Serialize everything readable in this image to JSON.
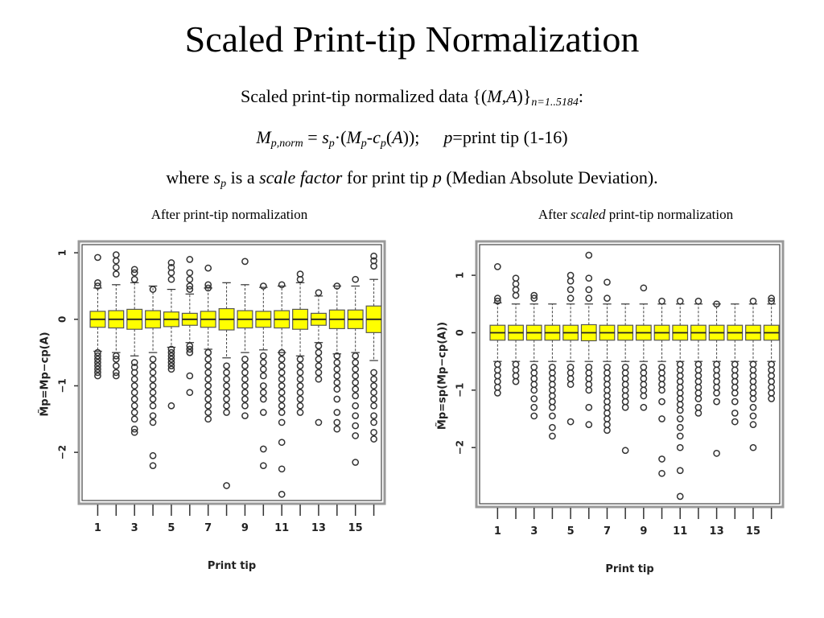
{
  "slide": {
    "title": "Scaled Print-tip Normalization",
    "line1": {
      "text": "Scaled print-tip normalized data {(",
      "var_m": "M",
      "comma": ",",
      "var_a": "A",
      "close": ")}",
      "subscript": "n=1..5184",
      "end": ":"
    },
    "line2": {
      "m": "M",
      "m_sub": "p,norm",
      "eq": " = ",
      "s": "s",
      "s_sub": "p",
      "dot_open": "·(",
      "m2": "M",
      "m2_sub": "p",
      "minus": "-",
      "c": "c",
      "c_sub": "p",
      "open": "(",
      "a": "A",
      "close": "));",
      "p": "p",
      "p_text": "=print tip (1-16)"
    },
    "line3": {
      "where": "where ",
      "s": "s",
      "s_sub": "p",
      "is_a": " is a ",
      "scale_factor": "scale factor",
      "for_tip": " for print tip ",
      "p": "p",
      "rest": " (Median Absolute Deviation)."
    },
    "captions": {
      "left": "After print-tip normalization",
      "right_prefix": "After ",
      "right_italic": "scaled",
      "right_suffix": " print-tip normalization"
    }
  },
  "colors": {
    "box_fill": "#ffff00",
    "box_stroke": "#555555",
    "outlier": "#333333"
  },
  "chart_data": [
    {
      "type": "boxplot",
      "xlabel": "Print tip",
      "ylabel": "M̃p=Mp−cp(A)",
      "ylim": [
        -2.7,
        1.05
      ],
      "yticks": [
        -2,
        -1,
        0,
        1
      ],
      "xtick_labels": [
        "1",
        "3",
        "5",
        "7",
        "9",
        "11",
        "13",
        "15"
      ],
      "categories": [
        1,
        2,
        3,
        4,
        5,
        6,
        7,
        8,
        9,
        10,
        11,
        12,
        13,
        14,
        15,
        16
      ],
      "boxes": [
        {
          "tip": 1,
          "q1": -0.12,
          "median": 0,
          "q3": 0.12,
          "wmin": -0.48,
          "wmax": 0.47
        },
        {
          "tip": 2,
          "q1": -0.13,
          "median": 0,
          "q3": 0.13,
          "wmin": -0.5,
          "wmax": 0.52
        },
        {
          "tip": 3,
          "q1": -0.15,
          "median": 0,
          "q3": 0.15,
          "wmin": -0.55,
          "wmax": 0.55
        },
        {
          "tip": 4,
          "q1": -0.13,
          "median": 0,
          "q3": 0.13,
          "wmin": -0.5,
          "wmax": 0.5
        },
        {
          "tip": 5,
          "q1": -0.11,
          "median": 0,
          "q3": 0.11,
          "wmin": -0.42,
          "wmax": 0.45
        },
        {
          "tip": 6,
          "q1": -0.09,
          "median": 0,
          "q3": 0.09,
          "wmin": -0.35,
          "wmax": 0.38
        },
        {
          "tip": 7,
          "q1": -0.12,
          "median": 0,
          "q3": 0.12,
          "wmin": -0.45,
          "wmax": 0.47
        },
        {
          "tip": 8,
          "q1": -0.16,
          "median": 0,
          "q3": 0.16,
          "wmin": -0.58,
          "wmax": 0.55
        },
        {
          "tip": 9,
          "q1": -0.13,
          "median": 0,
          "q3": 0.13,
          "wmin": -0.5,
          "wmax": 0.52
        },
        {
          "tip": 10,
          "q1": -0.12,
          "median": 0,
          "q3": 0.12,
          "wmin": -0.46,
          "wmax": 0.48
        },
        {
          "tip": 11,
          "q1": -0.13,
          "median": 0,
          "q3": 0.13,
          "wmin": -0.5,
          "wmax": 0.5
        },
        {
          "tip": 12,
          "q1": -0.15,
          "median": 0,
          "q3": 0.15,
          "wmin": -0.55,
          "wmax": 0.55
        },
        {
          "tip": 13,
          "q1": -0.09,
          "median": 0,
          "q3": 0.09,
          "wmin": -0.35,
          "wmax": 0.35
        },
        {
          "tip": 14,
          "q1": -0.14,
          "median": 0,
          "q3": 0.14,
          "wmin": -0.52,
          "wmax": 0.5
        },
        {
          "tip": 15,
          "q1": -0.14,
          "median": 0,
          "q3": 0.14,
          "wmin": -0.5,
          "wmax": 0.5
        },
        {
          "tip": 16,
          "q1": -0.2,
          "median": 0,
          "q3": 0.2,
          "wmin": -0.62,
          "wmax": 0.6
        }
      ],
      "outliers": [
        [
          0.93,
          0.55,
          0.5,
          -0.5,
          -0.55,
          -0.6,
          -0.65,
          -0.7,
          -0.75,
          -0.8,
          -0.85
        ],
        [
          0.97,
          0.88,
          0.78,
          0.68,
          -0.55,
          -0.6,
          -0.7,
          -0.8,
          -0.85
        ],
        [
          0.75,
          0.7,
          0.6,
          -0.65,
          -0.72,
          -0.8,
          -0.9,
          -1.0,
          -1.1,
          -1.2,
          -1.3,
          -1.4,
          -1.5,
          -1.65,
          -1.7
        ],
        [
          0.45,
          -0.6,
          -0.7,
          -0.8,
          -0.9,
          -1.0,
          -1.1,
          -1.2,
          -1.3,
          -1.45,
          -1.55,
          -2.05,
          -2.2
        ],
        [
          0.85,
          0.78,
          0.7,
          0.6,
          -0.45,
          -0.5,
          -0.55,
          -0.6,
          -0.65,
          -0.7,
          -0.75,
          -1.3
        ],
        [
          0.9,
          0.7,
          0.6,
          0.5,
          0.45,
          -0.4,
          -0.45,
          -0.5,
          -0.85,
          -1.1
        ],
        [
          0.77,
          0.52,
          0.47,
          -0.5,
          -0.6,
          -0.7,
          -0.8,
          -0.9,
          -1.0,
          -1.1,
          -1.2,
          -1.3,
          -1.4,
          -1.5
        ],
        [
          -0.7,
          -0.8,
          -0.9,
          -1.0,
          -1.1,
          -1.2,
          -1.3,
          -1.4,
          -2.5
        ],
        [
          0.87,
          -0.6,
          -0.7,
          -0.8,
          -0.9,
          -1.0,
          -1.1,
          -1.2,
          -1.3,
          -1.45
        ],
        [
          0.5,
          -0.55,
          -0.65,
          -0.75,
          -0.85,
          -1.0,
          -1.1,
          -1.2,
          -1.4,
          -1.95,
          -2.2
        ],
        [
          0.52,
          -0.5,
          -0.6,
          -0.7,
          -0.8,
          -0.9,
          -1.0,
          -1.1,
          -1.2,
          -1.3,
          -1.4,
          -1.55,
          -1.85,
          -2.25,
          -2.63
        ],
        [
          0.68,
          0.6,
          -0.6,
          -0.7,
          -0.8,
          -0.9,
          -1.0,
          -1.1,
          -1.2,
          -1.3,
          -1.4
        ],
        [
          0.4,
          -0.4,
          -0.5,
          -0.6,
          -0.7,
          -0.8,
          -0.9,
          -1.55
        ],
        [
          0.5,
          -0.55,
          -0.65,
          -0.75,
          -0.85,
          -0.95,
          -1.05,
          -1.2,
          -1.4,
          -1.55,
          -1.65
        ],
        [
          0.6,
          -0.55,
          -0.65,
          -0.75,
          -0.85,
          -0.95,
          -1.05,
          -1.15,
          -1.3,
          -1.45,
          -1.6,
          -1.75,
          -2.15
        ],
        [
          0.95,
          0.88,
          0.8,
          -0.8,
          -0.9,
          -1.0,
          -1.1,
          -1.2,
          -1.3,
          -1.45,
          -1.55,
          -1.7,
          -1.8
        ]
      ]
    },
    {
      "type": "boxplot",
      "xlabel": "Print tip",
      "ylabel": "M̃p=sp(Mp−cp(A))",
      "ylim": [
        -2.95,
        1.45
      ],
      "yticks": [
        -2,
        -1,
        0,
        1
      ],
      "xtick_labels": [
        "1",
        "3",
        "5",
        "7",
        "9",
        "11",
        "13",
        "15"
      ],
      "categories": [
        1,
        2,
        3,
        4,
        5,
        6,
        7,
        8,
        9,
        10,
        11,
        12,
        13,
        14,
        15,
        16
      ],
      "boxes": [
        {
          "tip": 1,
          "q1": -0.13,
          "median": 0,
          "q3": 0.13,
          "wmin": -0.5,
          "wmax": 0.52
        },
        {
          "tip": 2,
          "q1": -0.13,
          "median": 0,
          "q3": 0.13,
          "wmin": -0.5,
          "wmax": 0.5
        },
        {
          "tip": 3,
          "q1": -0.13,
          "median": 0,
          "q3": 0.13,
          "wmin": -0.5,
          "wmax": 0.5
        },
        {
          "tip": 4,
          "q1": -0.13,
          "median": 0,
          "q3": 0.13,
          "wmin": -0.5,
          "wmax": 0.5
        },
        {
          "tip": 5,
          "q1": -0.13,
          "median": 0,
          "q3": 0.13,
          "wmin": -0.5,
          "wmax": 0.5
        },
        {
          "tip": 6,
          "q1": -0.14,
          "median": 0,
          "q3": 0.14,
          "wmin": -0.5,
          "wmax": 0.5
        },
        {
          "tip": 7,
          "q1": -0.13,
          "median": 0,
          "q3": 0.13,
          "wmin": -0.5,
          "wmax": 0.5
        },
        {
          "tip": 8,
          "q1": -0.13,
          "median": 0,
          "q3": 0.13,
          "wmin": -0.5,
          "wmax": 0.5
        },
        {
          "tip": 9,
          "q1": -0.13,
          "median": 0,
          "q3": 0.13,
          "wmin": -0.5,
          "wmax": 0.5
        },
        {
          "tip": 10,
          "q1": -0.13,
          "median": 0,
          "q3": 0.13,
          "wmin": -0.5,
          "wmax": 0.5
        },
        {
          "tip": 11,
          "q1": -0.13,
          "median": 0,
          "q3": 0.13,
          "wmin": -0.5,
          "wmax": 0.5
        },
        {
          "tip": 12,
          "q1": -0.13,
          "median": 0,
          "q3": 0.13,
          "wmin": -0.5,
          "wmax": 0.5
        },
        {
          "tip": 13,
          "q1": -0.13,
          "median": 0,
          "q3": 0.13,
          "wmin": -0.5,
          "wmax": 0.5
        },
        {
          "tip": 14,
          "q1": -0.13,
          "median": 0,
          "q3": 0.13,
          "wmin": -0.5,
          "wmax": 0.5
        },
        {
          "tip": 15,
          "q1": -0.13,
          "median": 0,
          "q3": 0.13,
          "wmin": -0.5,
          "wmax": 0.5
        },
        {
          "tip": 16,
          "q1": -0.13,
          "median": 0,
          "q3": 0.13,
          "wmin": -0.5,
          "wmax": 0.5
        }
      ],
      "outliers": [
        [
          1.15,
          0.6,
          0.55,
          -0.55,
          -0.65,
          -0.75,
          -0.85,
          -0.95,
          -1.05
        ],
        [
          0.95,
          0.85,
          0.75,
          0.65,
          -0.55,
          -0.65,
          -0.75,
          -0.85
        ],
        [
          0.65,
          0.6,
          -0.6,
          -0.7,
          -0.8,
          -0.9,
          -1.0,
          -1.15,
          -1.3,
          -1.45
        ],
        [
          -0.6,
          -0.7,
          -0.8,
          -0.9,
          -1.0,
          -1.1,
          -1.2,
          -1.3,
          -1.45,
          -1.65,
          -1.8
        ],
        [
          1.0,
          0.9,
          0.75,
          0.6,
          -0.6,
          -0.7,
          -0.8,
          -0.9,
          -1.55
        ],
        [
          1.35,
          0.95,
          0.75,
          0.6,
          -0.6,
          -0.7,
          -0.8,
          -0.9,
          -1.0,
          -1.3,
          -1.6
        ],
        [
          0.88,
          0.6,
          -0.6,
          -0.7,
          -0.8,
          -0.9,
          -1.0,
          -1.1,
          -1.2,
          -1.3,
          -1.4,
          -1.5,
          -1.6,
          -1.7
        ],
        [
          -0.6,
          -0.7,
          -0.8,
          -0.9,
          -1.0,
          -1.1,
          -1.2,
          -1.3,
          -2.05
        ],
        [
          0.78,
          -0.6,
          -0.7,
          -0.8,
          -0.9,
          -1.0,
          -1.1,
          -1.3
        ],
        [
          0.55,
          -0.6,
          -0.7,
          -0.8,
          -0.9,
          -1.0,
          -1.2,
          -1.5,
          -2.2,
          -2.45
        ],
        [
          0.55,
          -0.55,
          -0.65,
          -0.75,
          -0.85,
          -0.95,
          -1.05,
          -1.15,
          -1.25,
          -1.35,
          -1.5,
          -1.65,
          -1.8,
          -2.0,
          -2.4,
          -2.85
        ],
        [
          0.55,
          -0.55,
          -0.65,
          -0.75,
          -0.85,
          -0.95,
          -1.05,
          -1.15,
          -1.3,
          -1.4
        ],
        [
          0.5,
          -0.55,
          -0.65,
          -0.75,
          -0.85,
          -0.95,
          -1.05,
          -1.2,
          -2.1
        ],
        [
          -0.55,
          -0.65,
          -0.75,
          -0.85,
          -0.95,
          -1.05,
          -1.2,
          -1.4,
          -1.55
        ],
        [
          0.55,
          -0.55,
          -0.65,
          -0.75,
          -0.85,
          -0.95,
          -1.05,
          -1.15,
          -1.3,
          -1.45,
          -1.6,
          -2.0
        ],
        [
          0.6,
          0.55,
          -0.55,
          -0.65,
          -0.75,
          -0.85,
          -0.95,
          -1.05,
          -1.15
        ]
      ]
    }
  ]
}
